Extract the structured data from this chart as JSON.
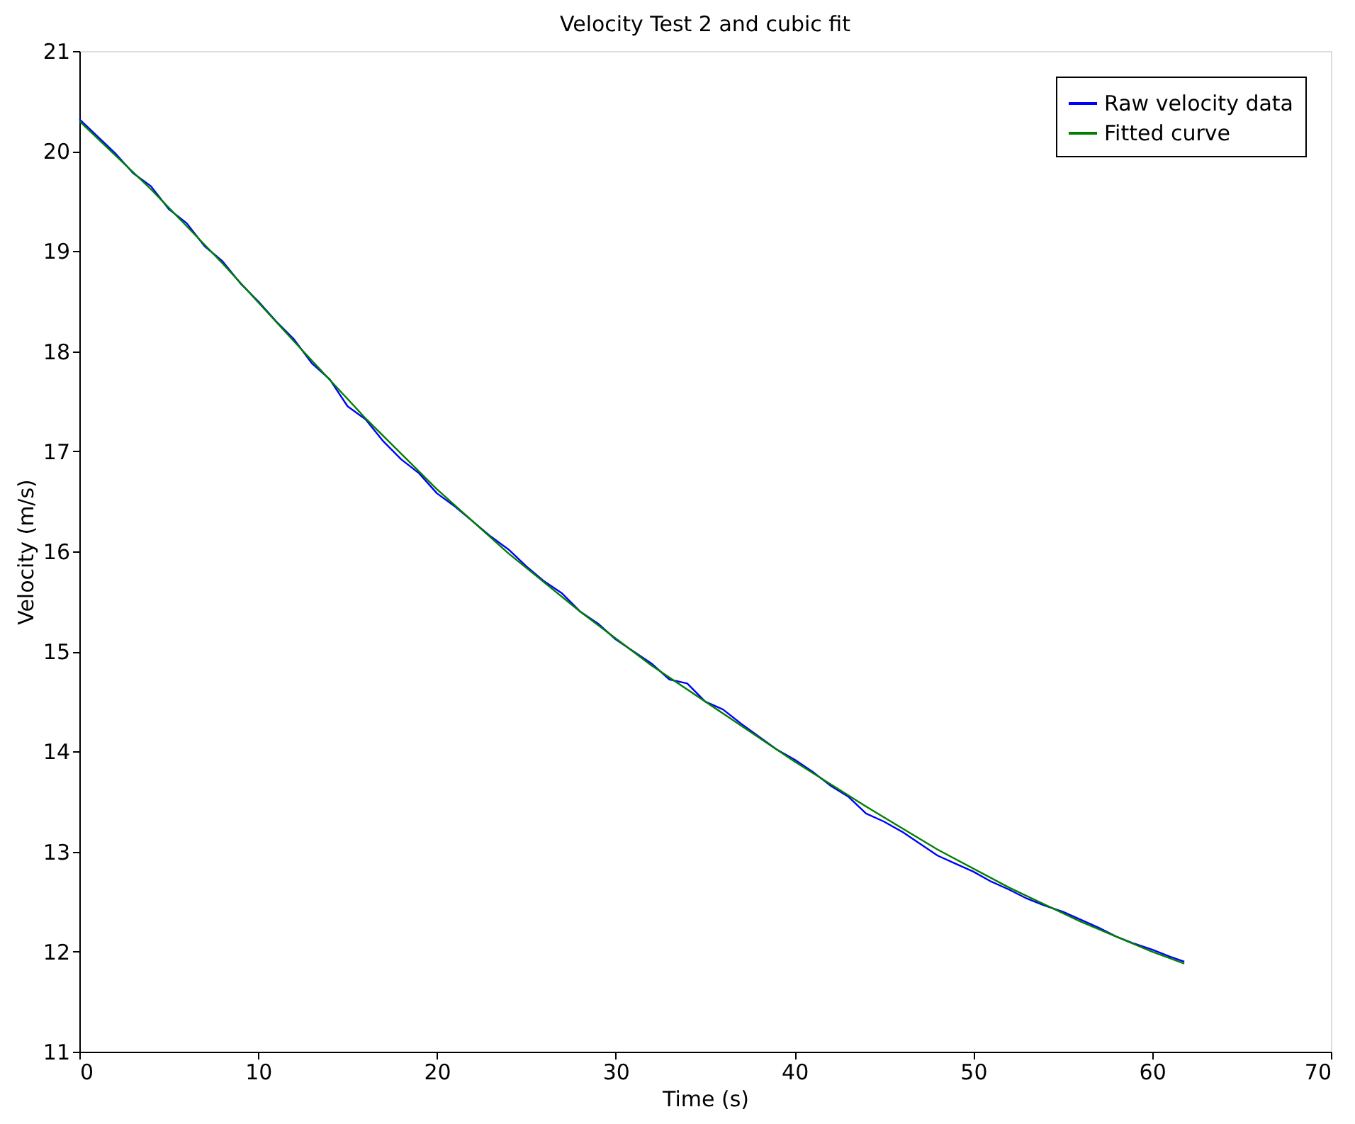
{
  "chart_data": {
    "type": "line",
    "title": "Velocity Test 2 and cubic fit",
    "xlabel": "Time (s)",
    "ylabel": "Velocity (m/s)",
    "xlim": [
      0,
      70
    ],
    "xticks": [
      0,
      10,
      20,
      30,
      40,
      50,
      60,
      70
    ],
    "ylim": [
      11,
      21
    ],
    "yticks": [
      11,
      12,
      13,
      14,
      15,
      16,
      17,
      18,
      19,
      20,
      21
    ],
    "grid": false,
    "legend": "top right",
    "marker": "none",
    "line_style": "solid",
    "series": [
      {
        "name": "Raw velocity data",
        "color": "#0000ff",
        "x": [
          0,
          1,
          2,
          3,
          4,
          5,
          6,
          7,
          8,
          9,
          10,
          11,
          12,
          13,
          14,
          15,
          16,
          17,
          18,
          19,
          20,
          21,
          22,
          23,
          24,
          25,
          26,
          27,
          28,
          29,
          30,
          31,
          32,
          33,
          34,
          35,
          36,
          37,
          38,
          39,
          40,
          41,
          42,
          43,
          44,
          45,
          46,
          47,
          48,
          49,
          50,
          51,
          52,
          53,
          54,
          55,
          56,
          57,
          58,
          59,
          60,
          61,
          61.8
        ],
        "values": [
          20.32,
          20.15,
          19.98,
          19.78,
          19.65,
          19.42,
          19.28,
          19.05,
          18.9,
          18.68,
          18.5,
          18.3,
          18.12,
          17.88,
          17.72,
          17.45,
          17.32,
          17.1,
          16.92,
          16.78,
          16.58,
          16.45,
          16.3,
          16.15,
          16.02,
          15.85,
          15.7,
          15.58,
          15.4,
          15.28,
          15.12,
          15.0,
          14.88,
          14.72,
          14.68,
          14.5,
          14.42,
          14.28,
          14.15,
          14.02,
          13.92,
          13.8,
          13.66,
          13.55,
          13.38,
          13.3,
          13.2,
          13.08,
          12.96,
          12.88,
          12.8,
          12.7,
          12.62,
          12.53,
          12.46,
          12.4,
          12.32,
          12.24,
          12.15,
          12.08,
          12.02,
          11.95,
          11.9
        ]
      },
      {
        "name": "Fitted curve",
        "color": "#008000",
        "x": [
          0,
          4,
          8,
          12,
          16,
          20,
          24,
          28,
          32,
          36,
          40,
          44,
          48,
          52,
          56,
          60,
          61.8
        ],
        "values": [
          20.3,
          19.62,
          18.88,
          18.1,
          17.33,
          16.62,
          15.98,
          15.4,
          14.86,
          14.38,
          13.9,
          13.45,
          13.02,
          12.64,
          12.3,
          12.0,
          11.88
        ]
      }
    ]
  }
}
